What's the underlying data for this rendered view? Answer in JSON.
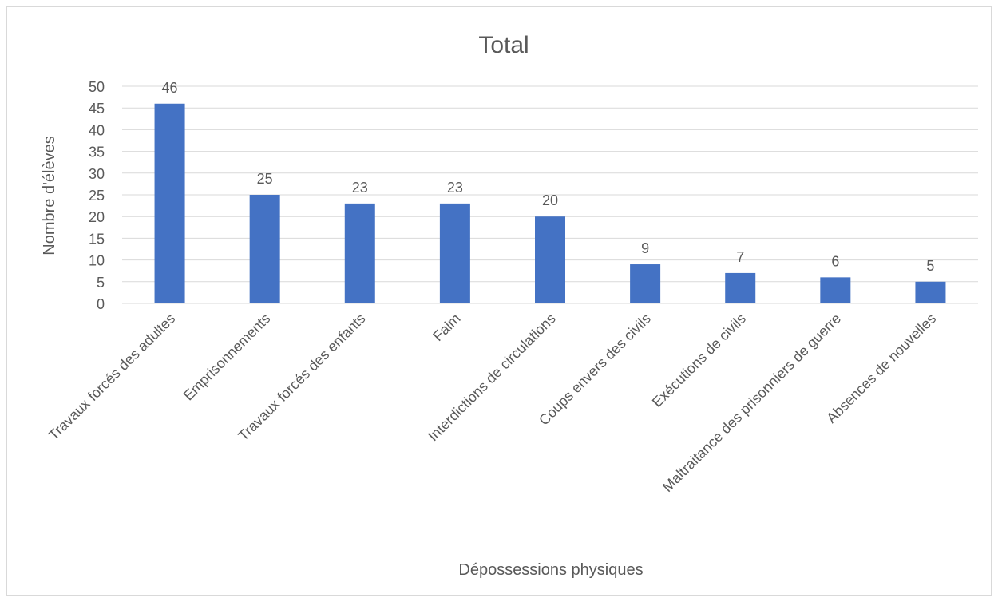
{
  "chart_data": {
    "type": "bar",
    "title": "Total",
    "xlabel": "Dépossessions physiques",
    "ylabel": "Nombre d'élèves",
    "categories": [
      "Travaux forcés des adultes",
      "Emprisonnements",
      "Travaux forcés des enfants",
      "Faim",
      "Interdictions de circulations",
      "Coups envers des civils",
      "Exécutions de civils",
      "Maltraitance des prisonniers de guerre",
      "Absences de nouvelles"
    ],
    "values": [
      46,
      25,
      23,
      23,
      20,
      9,
      7,
      6,
      5
    ],
    "ylim": [
      0,
      50
    ],
    "yticks": [
      0,
      5,
      10,
      15,
      20,
      25,
      30,
      35,
      40,
      45,
      50
    ],
    "grid": true,
    "legend": "none",
    "bar_color": "#4472c4",
    "gridline_color": "#d9d9d9",
    "text_color": "#595959",
    "border_color": "#d9d9d9"
  }
}
